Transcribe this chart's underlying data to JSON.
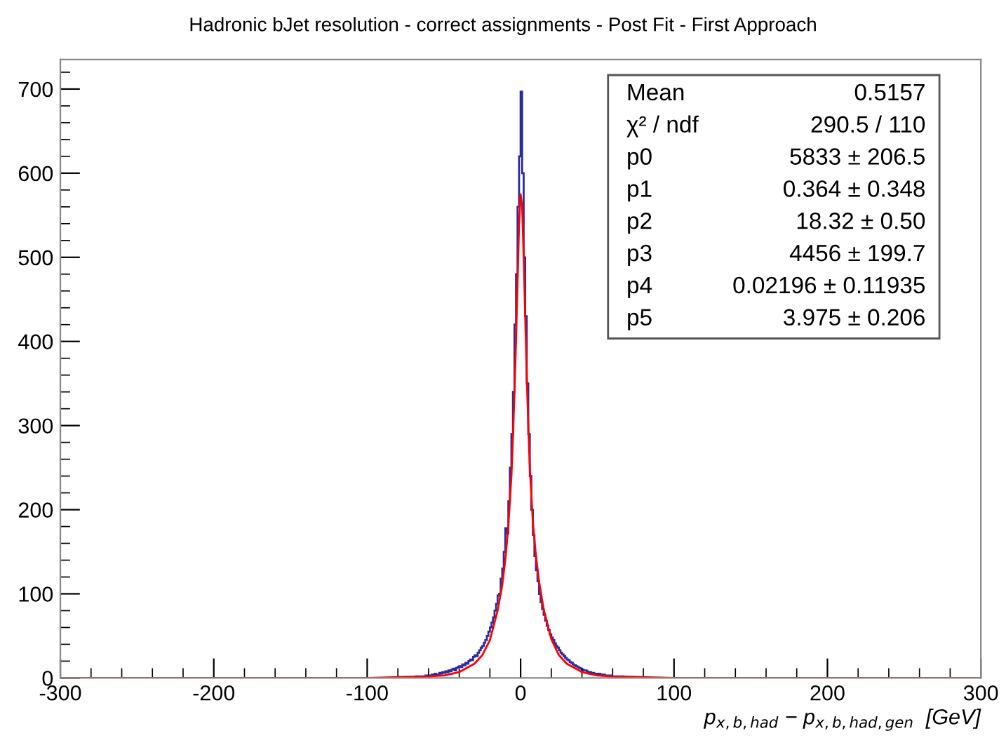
{
  "chart_data": {
    "type": "histogram",
    "title": "Hadronic bJet resolution - correct assignments - Post Fit - First Approach",
    "xlabel": "p$_{x,b,had}$ − p$_{x,b,had,gen}$  [GeV]",
    "bins": [
      -80,
      -79,
      -78,
      -77,
      -76,
      -75,
      -74,
      -73,
      -72,
      -71,
      -70,
      -69,
      -68,
      -67,
      -66,
      -65,
      -64,
      -63,
      -62,
      -61,
      -60,
      -59,
      -58,
      -57,
      -56,
      -55,
      -54,
      -53,
      -52,
      -51,
      -50,
      -49,
      -48,
      -47,
      -46,
      -45,
      -44,
      -43,
      -42,
      -41,
      -40,
      -39,
      -38,
      -37,
      -36,
      -35,
      -34,
      -33,
      -32,
      -31,
      -30,
      -29,
      -28,
      -27,
      -26,
      -25,
      -24,
      -23,
      -22,
      -21,
      -20,
      -19,
      -18,
      -17,
      -16,
      -15,
      -14,
      -13,
      -12,
      -11,
      -10,
      -9,
      -8,
      -7,
      -6,
      -5,
      -4,
      -3,
      -2,
      -1,
      0,
      1,
      2,
      3,
      4,
      5,
      6,
      7,
      8,
      9,
      10,
      11,
      12,
      13,
      14,
      15,
      16,
      17,
      18,
      19,
      20,
      21,
      22,
      23,
      24,
      25,
      26,
      27,
      28,
      29,
      30,
      31,
      32,
      33,
      34,
      35,
      36,
      37,
      38,
      39,
      40,
      41,
      42,
      43,
      44,
      45,
      46,
      47,
      48,
      49,
      50,
      51,
      52,
      53,
      54,
      55,
      56,
      57,
      58,
      59,
      60,
      61,
      62,
      63,
      64,
      65,
      66,
      67,
      68,
      69,
      70,
      71,
      72,
      73,
      74,
      75,
      76,
      77,
      78,
      79,
      80
    ],
    "values": [
      0,
      1,
      0,
      0,
      1,
      0,
      1,
      1,
      0,
      1,
      1,
      0,
      2,
      1,
      1,
      2,
      1,
      2,
      3,
      2,
      3,
      2,
      4,
      3,
      5,
      4,
      4,
      6,
      5,
      7,
      6,
      8,
      7,
      9,
      8,
      10,
      11,
      9,
      12,
      13,
      14,
      13,
      16,
      15,
      18,
      17,
      20,
      22,
      21,
      25,
      27,
      26,
      30,
      33,
      36,
      38,
      42,
      45,
      50,
      55,
      60,
      66,
      72,
      80,
      88,
      98,
      100,
      118,
      130,
      150,
      178,
      172,
      210,
      250,
      290,
      340,
      420,
      480,
      560,
      620,
      697,
      600,
      500,
      430,
      350,
      290,
      240,
      200,
      170,
      145,
      128,
      115,
      100,
      90,
      82,
      75,
      68,
      62,
      57,
      52,
      48,
      45,
      41,
      38,
      36,
      33,
      30,
      28,
      26,
      24,
      22,
      21,
      19,
      18,
      16,
      15,
      14,
      13,
      12,
      11,
      10,
      9,
      9,
      8,
      7,
      7,
      6,
      6,
      5,
      5,
      4,
      5,
      4,
      3,
      4,
      3,
      3,
      2,
      3,
      2,
      2,
      2,
      1,
      2,
      1,
      1,
      2,
      1,
      0,
      1,
      1,
      0,
      1,
      0,
      1,
      0,
      0,
      1,
      0,
      0
    ],
    "color": "#2b2b9e",
    "series": [
      {
        "type": "line",
        "color": "#ff0000",
        "x": [
          -300,
          -100,
          -60,
          -50,
          -40,
          -30,
          -25,
          -20,
          -15,
          -12,
          -10,
          -8,
          -6,
          -5,
          -4,
          -3,
          -2,
          -1,
          0,
          1,
          2,
          3,
          4,
          5,
          6,
          8,
          10,
          12,
          15,
          20,
          25,
          30,
          40,
          50,
          60,
          100,
          300
        ],
        "values": [
          0,
          0,
          2,
          3,
          7,
          17,
          27,
          45,
          80,
          110,
          140,
          180,
          240,
          285,
          340,
          400,
          470,
          540,
          575,
          560,
          500,
          430,
          360,
          300,
          250,
          185,
          145,
          115,
          82,
          46,
          27,
          17,
          7,
          3,
          2,
          0,
          0
        ]
      }
    ],
    "xlim": [
      -300,
      300
    ],
    "xticks": [
      -300,
      -200,
      -100,
      0,
      100,
      200,
      300
    ],
    "ylim": [
      0,
      735
    ],
    "yticks": [
      0,
      100,
      200,
      300,
      400,
      500,
      600,
      700
    ],
    "grid": false,
    "annotations": [
      "Mean",
      "0.5157",
      "χ² / ndf",
      "290.5 / 110",
      "p0",
      "5833 ± 206.5",
      "p1",
      "0.364 ± 0.348",
      "p2",
      "18.32 ± 0.50",
      "p3",
      "4456 ± 199.7",
      "p4",
      "0.02196 ± 0.11935",
      "p5",
      "3.975 ± 0.206"
    ]
  }
}
